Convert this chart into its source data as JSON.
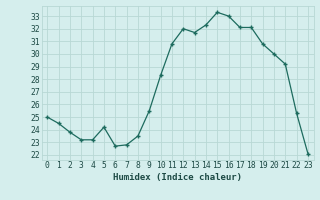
{
  "x": [
    0,
    1,
    2,
    3,
    4,
    5,
    6,
    7,
    8,
    9,
    10,
    11,
    12,
    13,
    14,
    15,
    16,
    17,
    18,
    19,
    20,
    21,
    22,
    23
  ],
  "y": [
    25.0,
    24.5,
    23.8,
    23.2,
    23.2,
    24.2,
    22.7,
    22.8,
    23.5,
    25.5,
    28.3,
    30.8,
    32.0,
    31.7,
    32.3,
    33.3,
    33.0,
    32.1,
    32.1,
    30.8,
    30.0,
    29.2,
    25.3,
    22.1
  ],
  "line_color": "#1d6b5e",
  "marker_color": "#1d6b5e",
  "bg_color": "#d5eeed",
  "grid_major_color": "#b8d8d5",
  "grid_minor_color": "#c8e8e5",
  "xlabel": "Humidex (Indice chaleur)",
  "ylabel_ticks": [
    22,
    23,
    24,
    25,
    26,
    27,
    28,
    29,
    30,
    31,
    32,
    33
  ],
  "xlim": [
    -0.5,
    23.5
  ],
  "ylim": [
    21.6,
    33.8
  ],
  "font_color": "#1d4a45",
  "xlabel_fontsize": 6.5,
  "tick_fontsize": 5.8
}
